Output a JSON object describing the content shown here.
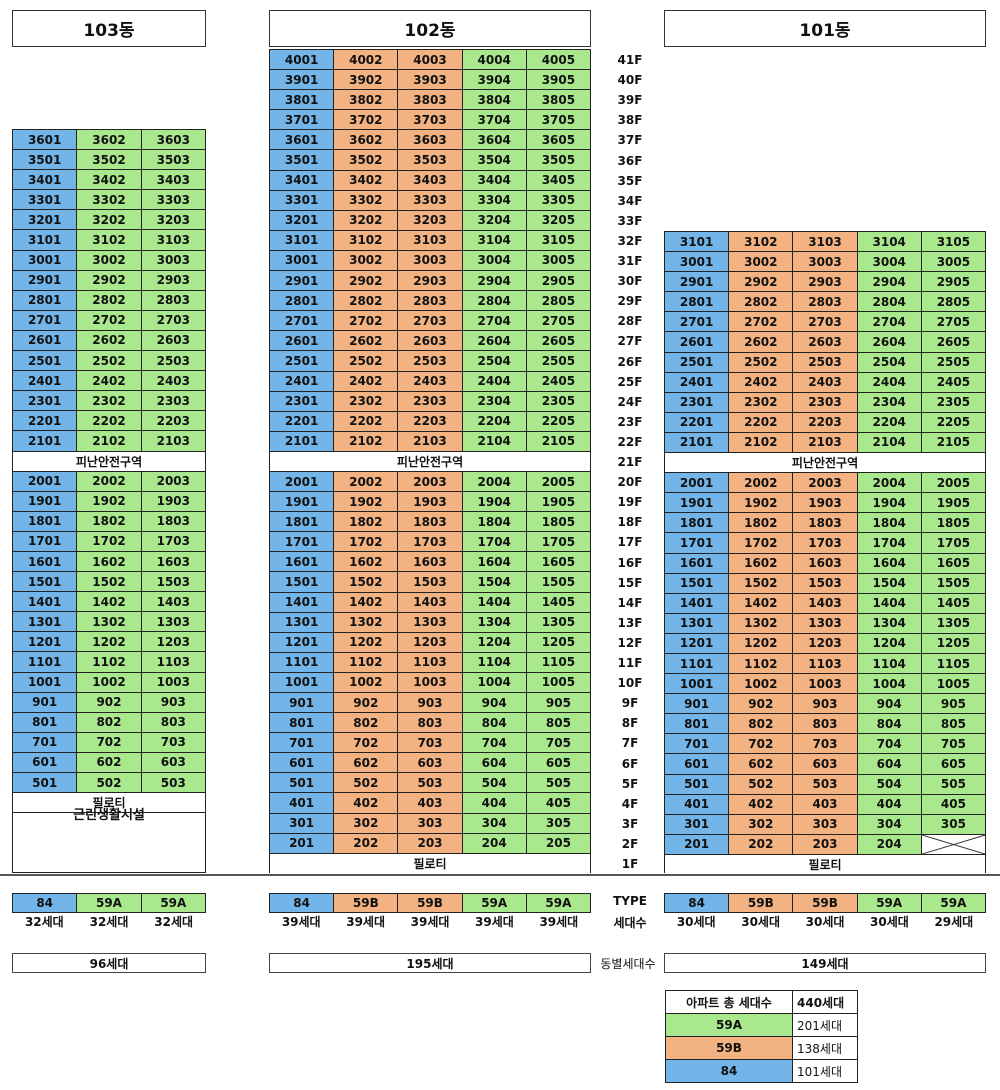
{
  "buildings": {
    "b103": {
      "title": "103동",
      "refuge_label": "피난안전구역",
      "piloti_label": "필로티",
      "amenity_label": "근린생활시설",
      "types": [
        "84",
        "59A",
        "59A"
      ],
      "households": [
        "32세대",
        "32세대",
        "32세대"
      ],
      "total": "96세대",
      "upper": [
        [
          "3601",
          "3602",
          "3603"
        ],
        [
          "3501",
          "3502",
          "3503"
        ],
        [
          "3401",
          "3402",
          "3403"
        ],
        [
          "3301",
          "3302",
          "3303"
        ],
        [
          "3201",
          "3202",
          "3203"
        ],
        [
          "3101",
          "3102",
          "3103"
        ],
        [
          "3001",
          "3002",
          "3003"
        ],
        [
          "2901",
          "2902",
          "2903"
        ],
        [
          "2801",
          "2802",
          "2803"
        ],
        [
          "2701",
          "2702",
          "2703"
        ],
        [
          "2601",
          "2602",
          "2603"
        ],
        [
          "2501",
          "2502",
          "2503"
        ],
        [
          "2401",
          "2402",
          "2403"
        ],
        [
          "2301",
          "2302",
          "2303"
        ],
        [
          "2201",
          "2202",
          "2203"
        ],
        [
          "2101",
          "2102",
          "2103"
        ]
      ],
      "lower": [
        [
          "2001",
          "2002",
          "2003"
        ],
        [
          "1901",
          "1902",
          "1903"
        ],
        [
          "1801",
          "1802",
          "1803"
        ],
        [
          "1701",
          "1702",
          "1703"
        ],
        [
          "1601",
          "1602",
          "1603"
        ],
        [
          "1501",
          "1502",
          "1503"
        ],
        [
          "1401",
          "1402",
          "1403"
        ],
        [
          "1301",
          "1302",
          "1303"
        ],
        [
          "1201",
          "1202",
          "1203"
        ],
        [
          "1101",
          "1102",
          "1103"
        ],
        [
          "1001",
          "1002",
          "1003"
        ],
        [
          "901",
          "902",
          "903"
        ],
        [
          "801",
          "802",
          "803"
        ],
        [
          "701",
          "702",
          "703"
        ],
        [
          "601",
          "602",
          "603"
        ],
        [
          "501",
          "502",
          "503"
        ]
      ]
    },
    "b102": {
      "title": "102동",
      "refuge_label": "피난안전구역",
      "piloti_label": "필로티",
      "types": [
        "84",
        "59B",
        "59B",
        "59A",
        "59A"
      ],
      "households": [
        "39세대",
        "39세대",
        "39세대",
        "39세대",
        "39세대"
      ],
      "total": "195세대",
      "upper": [
        [
          "4001",
          "4002",
          "4003",
          "4004",
          "4005"
        ],
        [
          "3901",
          "3902",
          "3903",
          "3904",
          "3905"
        ],
        [
          "3801",
          "3802",
          "3803",
          "3804",
          "3805"
        ],
        [
          "3701",
          "3702",
          "3703",
          "3704",
          "3705"
        ],
        [
          "3601",
          "3602",
          "3603",
          "3604",
          "3605"
        ],
        [
          "3501",
          "3502",
          "3503",
          "3504",
          "3505"
        ],
        [
          "3401",
          "3402",
          "3403",
          "3404",
          "3405"
        ],
        [
          "3301",
          "3302",
          "3303",
          "3304",
          "3305"
        ],
        [
          "3201",
          "3202",
          "3203",
          "3204",
          "3205"
        ],
        [
          "3101",
          "3102",
          "3103",
          "3104",
          "3105"
        ],
        [
          "3001",
          "3002",
          "3003",
          "3004",
          "3005"
        ],
        [
          "2901",
          "2902",
          "2903",
          "2904",
          "2905"
        ],
        [
          "2801",
          "2802",
          "2803",
          "2804",
          "2805"
        ],
        [
          "2701",
          "2702",
          "2703",
          "2704",
          "2705"
        ],
        [
          "2601",
          "2602",
          "2603",
          "2604",
          "2605"
        ],
        [
          "2501",
          "2502",
          "2503",
          "2504",
          "2505"
        ],
        [
          "2401",
          "2402",
          "2403",
          "2404",
          "2405"
        ],
        [
          "2301",
          "2302",
          "2303",
          "2304",
          "2305"
        ],
        [
          "2201",
          "2202",
          "2203",
          "2204",
          "2205"
        ],
        [
          "2101",
          "2102",
          "2103",
          "2104",
          "2105"
        ]
      ],
      "lower": [
        [
          "2001",
          "2002",
          "2003",
          "2004",
          "2005"
        ],
        [
          "1901",
          "1902",
          "1903",
          "1904",
          "1905"
        ],
        [
          "1801",
          "1802",
          "1803",
          "1804",
          "1805"
        ],
        [
          "1701",
          "1702",
          "1703",
          "1704",
          "1705"
        ],
        [
          "1601",
          "1602",
          "1603",
          "1604",
          "1605"
        ],
        [
          "1501",
          "1502",
          "1503",
          "1504",
          "1505"
        ],
        [
          "1401",
          "1402",
          "1403",
          "1404",
          "1405"
        ],
        [
          "1301",
          "1302",
          "1303",
          "1304",
          "1305"
        ],
        [
          "1201",
          "1202",
          "1203",
          "1204",
          "1205"
        ],
        [
          "1101",
          "1102",
          "1103",
          "1104",
          "1105"
        ],
        [
          "1001",
          "1002",
          "1003",
          "1004",
          "1005"
        ],
        [
          "901",
          "902",
          "903",
          "904",
          "905"
        ],
        [
          "801",
          "802",
          "803",
          "804",
          "805"
        ],
        [
          "701",
          "702",
          "703",
          "704",
          "705"
        ],
        [
          "601",
          "602",
          "603",
          "604",
          "605"
        ],
        [
          "501",
          "502",
          "503",
          "504",
          "505"
        ],
        [
          "401",
          "402",
          "403",
          "404",
          "405"
        ],
        [
          "301",
          "302",
          "303",
          "304",
          "305"
        ],
        [
          "201",
          "202",
          "203",
          "204",
          "205"
        ]
      ]
    },
    "b101": {
      "title": "101동",
      "refuge_label": "피난안전구역",
      "piloti_label": "필로티",
      "types": [
        "84",
        "59B",
        "59B",
        "59A",
        "59A"
      ],
      "households": [
        "30세대",
        "30세대",
        "30세대",
        "30세대",
        "29세대"
      ],
      "total": "149세대",
      "upper": [
        [
          "3101",
          "3102",
          "3103",
          "3104",
          "3105"
        ],
        [
          "3001",
          "3002",
          "3003",
          "3004",
          "3005"
        ],
        [
          "2901",
          "2902",
          "2903",
          "2904",
          "2905"
        ],
        [
          "2801",
          "2802",
          "2803",
          "2804",
          "2805"
        ],
        [
          "2701",
          "2702",
          "2703",
          "2704",
          "2705"
        ],
        [
          "2601",
          "2602",
          "2603",
          "2604",
          "2605"
        ],
        [
          "2501",
          "2502",
          "2503",
          "2504",
          "2505"
        ],
        [
          "2401",
          "2402",
          "2403",
          "2404",
          "2405"
        ],
        [
          "2301",
          "2302",
          "2303",
          "2304",
          "2305"
        ],
        [
          "2201",
          "2202",
          "2203",
          "2204",
          "2205"
        ],
        [
          "2101",
          "2102",
          "2103",
          "2104",
          "2105"
        ]
      ],
      "lower": [
        [
          "2001",
          "2002",
          "2003",
          "2004",
          "2005"
        ],
        [
          "1901",
          "1902",
          "1903",
          "1904",
          "1905"
        ],
        [
          "1801",
          "1802",
          "1803",
          "1804",
          "1805"
        ],
        [
          "1701",
          "1702",
          "1703",
          "1704",
          "1705"
        ],
        [
          "1601",
          "1602",
          "1603",
          "1604",
          "1605"
        ],
        [
          "1501",
          "1502",
          "1503",
          "1504",
          "1505"
        ],
        [
          "1401",
          "1402",
          "1403",
          "1404",
          "1405"
        ],
        [
          "1301",
          "1302",
          "1303",
          "1304",
          "1305"
        ],
        [
          "1201",
          "1202",
          "1203",
          "1204",
          "1205"
        ],
        [
          "1101",
          "1102",
          "1103",
          "1104",
          "1105"
        ],
        [
          "1001",
          "1002",
          "1003",
          "1004",
          "1005"
        ],
        [
          "901",
          "902",
          "903",
          "904",
          "905"
        ],
        [
          "801",
          "802",
          "803",
          "804",
          "805"
        ],
        [
          "701",
          "702",
          "703",
          "704",
          "705"
        ],
        [
          "601",
          "602",
          "603",
          "604",
          "605"
        ],
        [
          "501",
          "502",
          "503",
          "504",
          "505"
        ],
        [
          "401",
          "402",
          "403",
          "404",
          "405"
        ],
        [
          "301",
          "302",
          "303",
          "304",
          "305"
        ],
        [
          "201",
          "202",
          "203",
          "204",
          ""
        ]
      ]
    }
  },
  "floors": [
    "41F",
    "40F",
    "39F",
    "38F",
    "37F",
    "36F",
    "35F",
    "34F",
    "33F",
    "32F",
    "31F",
    "30F",
    "29F",
    "28F",
    "27F",
    "26F",
    "25F",
    "24F",
    "23F",
    "22F",
    "21F",
    "20F",
    "19F",
    "18F",
    "17F",
    "16F",
    "15F",
    "14F",
    "13F",
    "12F",
    "11F",
    "10F",
    "9F",
    "8F",
    "7F",
    "6F",
    "5F",
    "4F",
    "3F",
    "2F",
    "1F"
  ],
  "labels": {
    "type": "TYPE",
    "households": "세대수",
    "building_households": "동별세대수"
  },
  "legend": {
    "title": "아파트 총 세대수",
    "total": "440세대",
    "rows": [
      {
        "type": "59A",
        "count": "201세대"
      },
      {
        "type": "59B",
        "count": "138세대"
      },
      {
        "type": "84",
        "count": "101세대"
      }
    ]
  },
  "colors": {
    "type_84": "#73b5e8",
    "type_59A": "#a9e88c",
    "type_59B": "#f3b282"
  }
}
